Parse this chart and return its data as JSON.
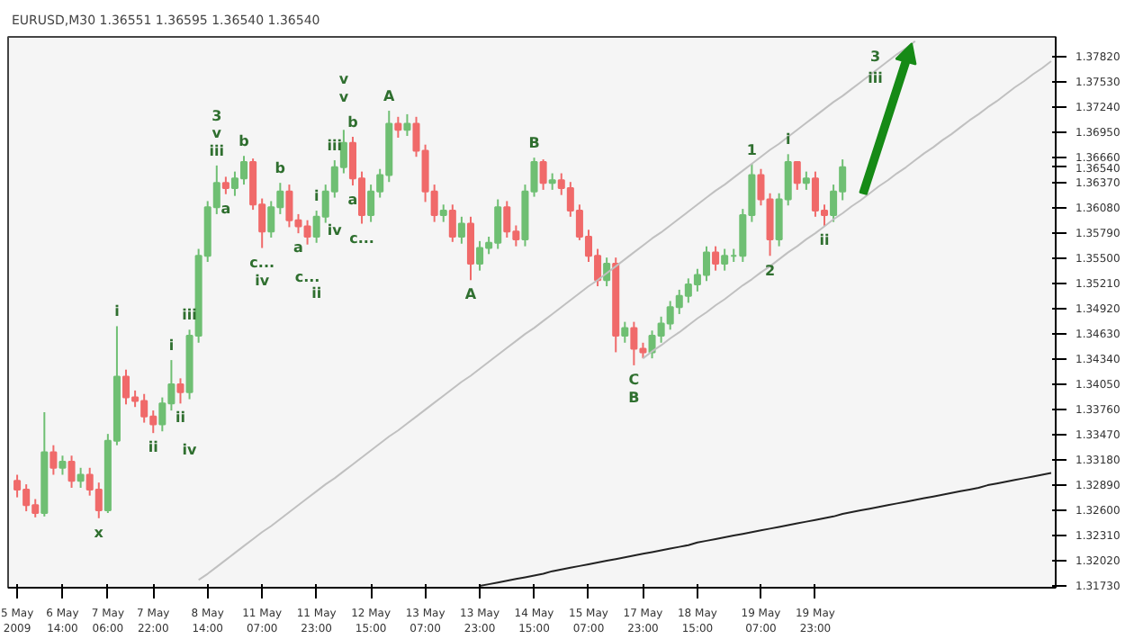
{
  "chart_data": {
    "type": "candlestick",
    "title": "EURUSD,M30 1.36551 1.36595 1.36540 1.36540",
    "categories": [
      "5 May 2009",
      null,
      null,
      null,
      null,
      "6 May 14:00",
      null,
      null,
      null,
      null,
      "7 May 06:00",
      null,
      null,
      null,
      null,
      "7 May 22:00",
      null,
      null,
      null,
      null,
      null,
      "8 May 14:00",
      null,
      null,
      null,
      null,
      null,
      "11 May 07:00",
      null,
      null,
      null,
      null,
      null,
      "11 May 23:00",
      null,
      null,
      null,
      null,
      null,
      "12 May 15:00",
      null,
      null,
      null,
      null,
      null,
      "13 May 07:00",
      null,
      null,
      null,
      null,
      null,
      "13 May 23:00",
      null,
      null,
      null,
      null,
      null,
      "14 May 15:00",
      null,
      null,
      null,
      null,
      null,
      "15 May 07:00",
      null,
      null,
      null,
      null,
      null,
      "17 May 23:00",
      null,
      null,
      null,
      null,
      null,
      "18 May 15:00",
      null,
      null,
      null,
      null,
      null,
      null,
      "19 May 07:00",
      null,
      null,
      null,
      null,
      null,
      "19 May 23:00",
      null,
      null,
      null,
      null,
      null,
      null,
      null,
      null,
      null,
      null,
      null,
      null,
      null,
      null,
      null,
      null,
      null,
      null,
      null,
      null,
      null,
      null,
      null,
      null,
      null,
      null
    ],
    "ohlc": [
      [
        1.3293,
        1.33,
        1.3274,
        1.3283
      ],
      [
        1.3283,
        1.3289,
        1.3258,
        1.3265
      ],
      [
        1.3265,
        1.3272,
        1.3251,
        1.3256
      ],
      [
        1.3256,
        1.3372,
        1.3252,
        1.3326
      ],
      [
        1.3326,
        1.3334,
        1.33,
        1.3308
      ],
      [
        1.3308,
        1.3322,
        1.33,
        1.3315
      ],
      [
        1.3315,
        1.3322,
        1.3285,
        1.3293
      ],
      [
        1.3293,
        1.3308,
        1.3285,
        1.33
      ],
      [
        1.33,
        1.3308,
        1.3276,
        1.3283
      ],
      [
        1.3283,
        1.3291,
        1.325,
        1.3259
      ],
      [
        1.3259,
        1.3347,
        1.3256,
        1.3339
      ],
      [
        1.3339,
        1.3471,
        1.3334,
        1.3413
      ],
      [
        1.3413,
        1.3421,
        1.3381,
        1.3389
      ],
      [
        1.3389,
        1.3397,
        1.3378,
        1.3385
      ],
      [
        1.3385,
        1.3393,
        1.336,
        1.3367
      ],
      [
        1.3367,
        1.3374,
        1.3348,
        1.3358
      ],
      [
        1.3358,
        1.3389,
        1.335,
        1.3382
      ],
      [
        1.3382,
        1.3432,
        1.3374,
        1.3404
      ],
      [
        1.3404,
        1.3411,
        1.3382,
        1.3395
      ],
      [
        1.3395,
        1.3467,
        1.3387,
        1.346
      ],
      [
        1.346,
        1.356,
        1.3452,
        1.3552
      ],
      [
        1.3552,
        1.3615,
        1.3545,
        1.3608
      ],
      [
        1.3608,
        1.3656,
        1.36,
        1.3636
      ],
      [
        1.3636,
        1.3643,
        1.3623,
        1.363
      ],
      [
        1.363,
        1.3649,
        1.3621,
        1.3641
      ],
      [
        1.3641,
        1.3667,
        1.3634,
        1.366
      ],
      [
        1.366,
        1.3664,
        1.3605,
        1.3611
      ],
      [
        1.3611,
        1.3618,
        1.3561,
        1.358
      ],
      [
        1.358,
        1.3615,
        1.3573,
        1.3608
      ],
      [
        1.3608,
        1.3636,
        1.36,
        1.3626
      ],
      [
        1.3626,
        1.3634,
        1.3585,
        1.3593
      ],
      [
        1.3593,
        1.36,
        1.3578,
        1.3586
      ],
      [
        1.3586,
        1.3593,
        1.3565,
        1.3574
      ],
      [
        1.3574,
        1.3604,
        1.3567,
        1.3597
      ],
      [
        1.3597,
        1.3634,
        1.359,
        1.3626
      ],
      [
        1.3626,
        1.3662,
        1.3619,
        1.3654
      ],
      [
        1.3654,
        1.3697,
        1.3647,
        1.3682
      ],
      [
        1.3682,
        1.3689,
        1.3633,
        1.3641
      ],
      [
        1.3641,
        1.3649,
        1.3589,
        1.3599
      ],
      [
        1.3599,
        1.3634,
        1.3591,
        1.3626
      ],
      [
        1.3626,
        1.3652,
        1.3619,
        1.3645
      ],
      [
        1.3645,
        1.3719,
        1.3637,
        1.3704
      ],
      [
        1.3704,
        1.3712,
        1.3688,
        1.3697
      ],
      [
        1.3697,
        1.3715,
        1.369,
        1.3704
      ],
      [
        1.3704,
        1.3712,
        1.3666,
        1.3673
      ],
      [
        1.3673,
        1.368,
        1.3614,
        1.3626
      ],
      [
        1.3626,
        1.3634,
        1.3591,
        1.3599
      ],
      [
        1.3599,
        1.3611,
        1.3591,
        1.3604
      ],
      [
        1.3604,
        1.3611,
        1.3568,
        1.3574
      ],
      [
        1.3574,
        1.3597,
        1.3566,
        1.3589
      ],
      [
        1.3589,
        1.3597,
        1.3524,
        1.3543
      ],
      [
        1.3543,
        1.3569,
        1.3535,
        1.3561
      ],
      [
        1.3561,
        1.3574,
        1.3554,
        1.3567
      ],
      [
        1.3567,
        1.3617,
        1.356,
        1.3608
      ],
      [
        1.3608,
        1.3615,
        1.3573,
        1.358
      ],
      [
        1.358,
        1.3587,
        1.3563,
        1.3571
      ],
      [
        1.3571,
        1.3634,
        1.3563,
        1.3626
      ],
      [
        1.3626,
        1.3665,
        1.362,
        1.366
      ],
      [
        1.366,
        1.3663,
        1.3628,
        1.3636
      ],
      [
        1.3636,
        1.3647,
        1.3628,
        1.3639
      ],
      [
        1.3639,
        1.3647,
        1.3622,
        1.363
      ],
      [
        1.363,
        1.3637,
        1.3597,
        1.3604
      ],
      [
        1.3604,
        1.3611,
        1.357,
        1.3574
      ],
      [
        1.3574,
        1.3582,
        1.3545,
        1.3552
      ],
      [
        1.3552,
        1.356,
        1.3517,
        1.3524
      ],
      [
        1.3524,
        1.355,
        1.3517,
        1.3543
      ],
      [
        1.3543,
        1.355,
        1.3441,
        1.346
      ],
      [
        1.346,
        1.3476,
        1.3452,
        1.3469
      ],
      [
        1.3469,
        1.3476,
        1.3426,
        1.3445
      ],
      [
        1.3445,
        1.3452,
        1.3434,
        1.3441
      ],
      [
        1.3441,
        1.3466,
        1.3434,
        1.346
      ],
      [
        1.346,
        1.3482,
        1.3452,
        1.3474
      ],
      [
        1.3474,
        1.35,
        1.3467,
        1.3493
      ],
      [
        1.3493,
        1.3513,
        1.3485,
        1.3506
      ],
      [
        1.3506,
        1.3526,
        1.3498,
        1.3519
      ],
      [
        1.3519,
        1.3537,
        1.3511,
        1.353
      ],
      [
        1.353,
        1.3563,
        1.3523,
        1.3556
      ],
      [
        1.3556,
        1.3563,
        1.3535,
        1.3543
      ],
      [
        1.3543,
        1.356,
        1.3535,
        1.3552
      ],
      [
        1.3552,
        1.356,
        1.3545,
        1.3552
      ],
      [
        1.3552,
        1.3606,
        1.3545,
        1.3599
      ],
      [
        1.3599,
        1.3658,
        1.3591,
        1.3645
      ],
      [
        1.3645,
        1.3652,
        1.361,
        1.3617
      ],
      [
        1.3617,
        1.3624,
        1.3552,
        1.3571
      ],
      [
        1.3571,
        1.3624,
        1.3563,
        1.3617
      ],
      [
        1.3617,
        1.3669,
        1.361,
        1.366
      ],
      [
        1.366,
        1.3661,
        1.3628,
        1.3636
      ],
      [
        1.3636,
        1.3649,
        1.3628,
        1.3641
      ],
      [
        1.3641,
        1.3649,
        1.3597,
        1.3604
      ],
      [
        1.3604,
        1.3611,
        1.3586,
        1.3599
      ],
      [
        1.3599,
        1.3634,
        1.3591,
        1.3626
      ],
      [
        1.3626,
        1.3663,
        1.3616,
        1.3654
      ],
      null,
      null,
      null,
      null,
      null,
      null,
      null,
      null,
      null,
      null,
      null,
      null,
      null,
      null,
      null,
      null,
      null,
      null,
      null,
      null,
      null,
      null,
      null
    ],
    "colors": [
      "#f06a6a",
      "#f06a6a",
      "#f06a6a",
      "#6fbf73",
      "#f06a6a",
      "#6fbf73",
      "#f06a6a",
      "#6fbf73",
      "#f06a6a",
      "#f06a6a",
      "#6fbf73",
      "#6fbf73",
      "#f06a6a",
      "#f06a6a",
      "#f06a6a",
      "#f06a6a",
      "#6fbf73",
      "#6fbf73",
      "#f06a6a",
      "#6fbf73",
      "#6fbf73",
      "#6fbf73",
      "#6fbf73",
      "#f06a6a",
      "#6fbf73",
      "#6fbf73",
      "#f06a6a",
      "#f06a6a",
      "#6fbf73",
      "#6fbf73",
      "#f06a6a",
      "#f06a6a",
      "#f06a6a",
      "#6fbf73",
      "#6fbf73",
      "#6fbf73",
      "#6fbf73",
      "#f06a6a",
      "#f06a6a",
      "#6fbf73",
      "#6fbf73",
      "#6fbf73",
      "#f06a6a",
      "#6fbf73",
      "#f06a6a",
      "#f06a6a",
      "#f06a6a",
      "#6fbf73",
      "#f06a6a",
      "#6fbf73",
      "#f06a6a",
      "#6fbf73",
      "#6fbf73",
      "#6fbf73",
      "#f06a6a",
      "#f06a6a",
      "#6fbf73",
      "#6fbf73",
      "#f06a6a",
      "#6fbf73",
      "#f06a6a",
      "#f06a6a",
      "#f06a6a",
      "#f06a6a",
      "#f06a6a",
      "#6fbf73",
      "#f06a6a",
      "#6fbf73",
      "#f06a6a",
      "#f06a6a",
      "#6fbf73",
      "#6fbf73",
      "#6fbf73",
      "#6fbf73",
      "#6fbf73",
      "#6fbf73",
      "#6fbf73",
      "#f06a6a",
      "#6fbf73",
      "#6fbf73",
      "#6fbf73",
      "#6fbf73",
      "#f06a6a",
      "#f06a6a",
      "#6fbf73",
      "#6fbf73",
      "#f06a6a",
      "#6fbf73",
      "#f06a6a",
      "#f06a6a",
      "#6fbf73",
      "#6fbf73",
      null,
      null,
      null,
      null,
      null,
      null,
      null,
      null,
      null,
      null,
      null,
      null,
      null,
      null,
      null,
      null,
      null,
      null,
      null,
      null,
      null,
      null,
      null
    ],
    "series": [
      {
        "type": "line",
        "color": "#c0c0c0",
        "values": [
          null,
          null,
          null,
          null,
          null,
          null,
          null,
          null,
          null,
          null,
          null,
          null,
          null,
          null,
          null,
          null,
          null,
          null,
          null,
          null,
          1.3179,
          1.3186,
          1.3194,
          1.3202,
          1.321,
          1.3218,
          1.3226,
          1.3234,
          1.3241,
          1.3249,
          1.3257,
          1.3265,
          1.3273,
          1.3281,
          1.3289,
          1.3296,
          1.3304,
          1.3312,
          1.332,
          1.3328,
          1.3336,
          1.3344,
          1.3351,
          1.3359,
          1.3367,
          1.3375,
          1.3383,
          1.3391,
          1.3399,
          1.3407,
          1.3414,
          1.3422,
          1.343,
          1.3438,
          1.3446,
          1.3454,
          1.3462,
          1.3469,
          1.3477,
          1.3485,
          1.3493,
          1.3501,
          1.3509,
          1.3517,
          1.3524,
          1.3532,
          1.354,
          1.3548,
          1.3556,
          1.3564,
          1.3572,
          1.3579,
          1.3587,
          1.3595,
          1.3603,
          1.3611,
          1.3619,
          1.3627,
          1.3634,
          1.3642,
          1.365,
          1.3658,
          1.3666,
          1.3674,
          1.3681,
          1.3689,
          1.3697,
          1.3705,
          1.3713,
          1.3721,
          1.3729,
          1.3736,
          1.3744,
          1.3752,
          1.376,
          1.3768,
          1.3776,
          1.3784,
          1.3791,
          1.3799,
          null,
          null,
          null,
          null,
          null,
          null,
          null,
          null,
          null,
          null,
          null,
          null,
          null,
          null,
          null
        ]
      },
      {
        "type": "line",
        "color": "#c0c0c0",
        "values": [
          null,
          null,
          null,
          null,
          null,
          null,
          null,
          null,
          null,
          null,
          null,
          null,
          null,
          null,
          null,
          null,
          null,
          null,
          null,
          null,
          null,
          null,
          null,
          null,
          null,
          null,
          null,
          null,
          null,
          null,
          null,
          null,
          null,
          null,
          null,
          null,
          null,
          null,
          null,
          null,
          null,
          null,
          null,
          null,
          null,
          null,
          null,
          null,
          null,
          null,
          null,
          null,
          null,
          null,
          null,
          null,
          null,
          null,
          null,
          null,
          null,
          null,
          null,
          null,
          null,
          null,
          null,
          null,
          null,
          1.3434,
          1.3442,
          1.3449,
          1.3457,
          1.3464,
          1.3472,
          1.348,
          1.3487,
          1.3495,
          1.3502,
          1.351,
          1.3518,
          1.3525,
          1.3533,
          1.354,
          1.3548,
          1.3556,
          1.3563,
          1.3571,
          1.3578,
          1.3586,
          1.3594,
          1.3601,
          1.3609,
          1.3616,
          1.3624,
          1.3632,
          1.3639,
          1.3647,
          1.3654,
          1.3662,
          1.367,
          1.3677,
          1.3685,
          1.3692,
          1.37,
          1.3708,
          1.3715,
          1.3723,
          1.373,
          1.3738,
          1.3746,
          1.3753,
          1.3761,
          1.3768,
          1.3776
        ]
      },
      {
        "type": "line",
        "color": "#222222",
        "values": [
          null,
          null,
          null,
          null,
          null,
          null,
          null,
          null,
          null,
          null,
          null,
          null,
          null,
          null,
          null,
          null,
          null,
          null,
          null,
          null,
          null,
          null,
          null,
          null,
          null,
          null,
          null,
          null,
          null,
          null,
          null,
          null,
          null,
          null,
          null,
          null,
          null,
          null,
          null,
          null,
          null,
          null,
          null,
          null,
          null,
          null,
          null,
          null,
          null,
          null,
          null,
          1.3172,
          1.3174,
          1.3176,
          1.3178,
          1.318,
          1.3182,
          1.3184,
          1.3186,
          1.3189,
          1.3191,
          1.3193,
          1.3195,
          1.3197,
          1.3199,
          1.3201,
          1.3203,
          1.3205,
          1.3207,
          1.3209,
          1.3211,
          1.3213,
          1.3215,
          1.3217,
          1.3219,
          1.3222,
          1.3224,
          1.3226,
          1.3228,
          1.323,
          1.3232,
          1.3234,
          1.3236,
          1.3238,
          1.324,
          1.3242,
          1.3244,
          1.3246,
          1.3248,
          1.325,
          1.3252,
          1.3255,
          1.3257,
          1.3259,
          1.3261,
          1.3263,
          1.3265,
          1.3267,
          1.3269,
          1.3271,
          1.3273,
          1.3275,
          1.3277,
          1.3279,
          1.3281,
          1.3283,
          1.3285,
          1.3288,
          1.329,
          1.3292,
          1.3294,
          1.3296,
          1.3298,
          1.33,
          1.3302
        ]
      }
    ],
    "ylim": [
      1.317,
      1.3804
    ],
    "yticks": [
      {
        "value": 1.3782,
        "label": "1.37820"
      },
      {
        "value": 1.3753,
        "label": "1.37530"
      },
      {
        "value": 1.3724,
        "label": "1.37240"
      },
      {
        "value": 1.3695,
        "label": "1.36950"
      },
      {
        "value": 1.3666,
        "label": "1.36660"
      },
      {
        "value": 1.3654,
        "label": "1.36540"
      },
      {
        "value": 1.3637,
        "label": "1.36370"
      },
      {
        "value": 1.3608,
        "label": "1.36080"
      },
      {
        "value": 1.3579,
        "label": "1.35790"
      },
      {
        "value": 1.355,
        "label": "1.35500"
      },
      {
        "value": 1.3521,
        "label": "1.35210"
      },
      {
        "value": 1.3492,
        "label": "1.34920"
      },
      {
        "value": 1.3463,
        "label": "1.34630"
      },
      {
        "value": 1.3434,
        "label": "1.34340"
      },
      {
        "value": 1.3405,
        "label": "1.34050"
      },
      {
        "value": 1.3376,
        "label": "1.33760"
      },
      {
        "value": 1.3347,
        "label": "1.33470"
      },
      {
        "value": 1.3318,
        "label": "1.33180"
      },
      {
        "value": 1.3289,
        "label": "1.32890"
      },
      {
        "value": 1.326,
        "label": "1.32600"
      },
      {
        "value": 1.3231,
        "label": "1.32310"
      },
      {
        "value": 1.3202,
        "label": "1.32020"
      },
      {
        "value": 1.3173,
        "label": "1.31730"
      }
    ],
    "annotations": [
      {
        "text": "iii",
        "y": 1.3656
      },
      {
        "text": "v",
        "y": 1.3656
      },
      {
        "text": "3",
        "y": 1.3656
      },
      {
        "text": "b",
        "y": 1.3667
      },
      {
        "text": "a",
        "y": 1.3623
      },
      {
        "text": "c...",
        "y": 1.3561
      },
      {
        "text": "iv",
        "y": 1.3561
      },
      {
        "text": "b",
        "y": 1.3636
      },
      {
        "text": "a",
        "y": 1.3578
      },
      {
        "text": "c...",
        "y": 1.3565
      },
      {
        "text": "i",
        "y": 1.3604
      },
      {
        "text": "ii",
        "y": 1.3567
      },
      {
        "text": "iii",
        "y": 1.3662
      },
      {
        "text": "iv",
        "y": 1.3619
      },
      {
        "text": "b",
        "y": 1.3689
      },
      {
        "text": "v",
        "y": 1.3697
      },
      {
        "text": "v",
        "y": 1.3697
      },
      {
        "text": "a",
        "y": 1.3633
      },
      {
        "text": "c...",
        "y": 1.3589
      },
      {
        "text": "A",
        "y": 1.3719
      },
      {
        "text": "A",
        "y": 1.3524
      },
      {
        "text": "B",
        "y": 1.3665
      },
      {
        "text": "C",
        "y": 1.3426
      },
      {
        "text": "B",
        "y": 1.3426
      },
      {
        "text": "1",
        "y": 1.3658
      },
      {
        "text": "2",
        "y": 1.3552
      },
      {
        "text": "i",
        "y": 1.3669
      },
      {
        "text": "ii",
        "y": 1.3586
      },
      "3",
      "iii",
      {
        "text": "x",
        "y": 1.325
      },
      {
        "text": "i",
        "y": 1.3471
      },
      {
        "text": "ii",
        "y": 1.3348
      },
      {
        "text": "i",
        "y": 1.3432
      },
      {
        "text": "ii",
        "y": 1.3382
      },
      {
        "text": "iii",
        "y": 1.3467
      },
      {
        "text": "iv",
        "y": 1.3387
      }
    ]
  }
}
